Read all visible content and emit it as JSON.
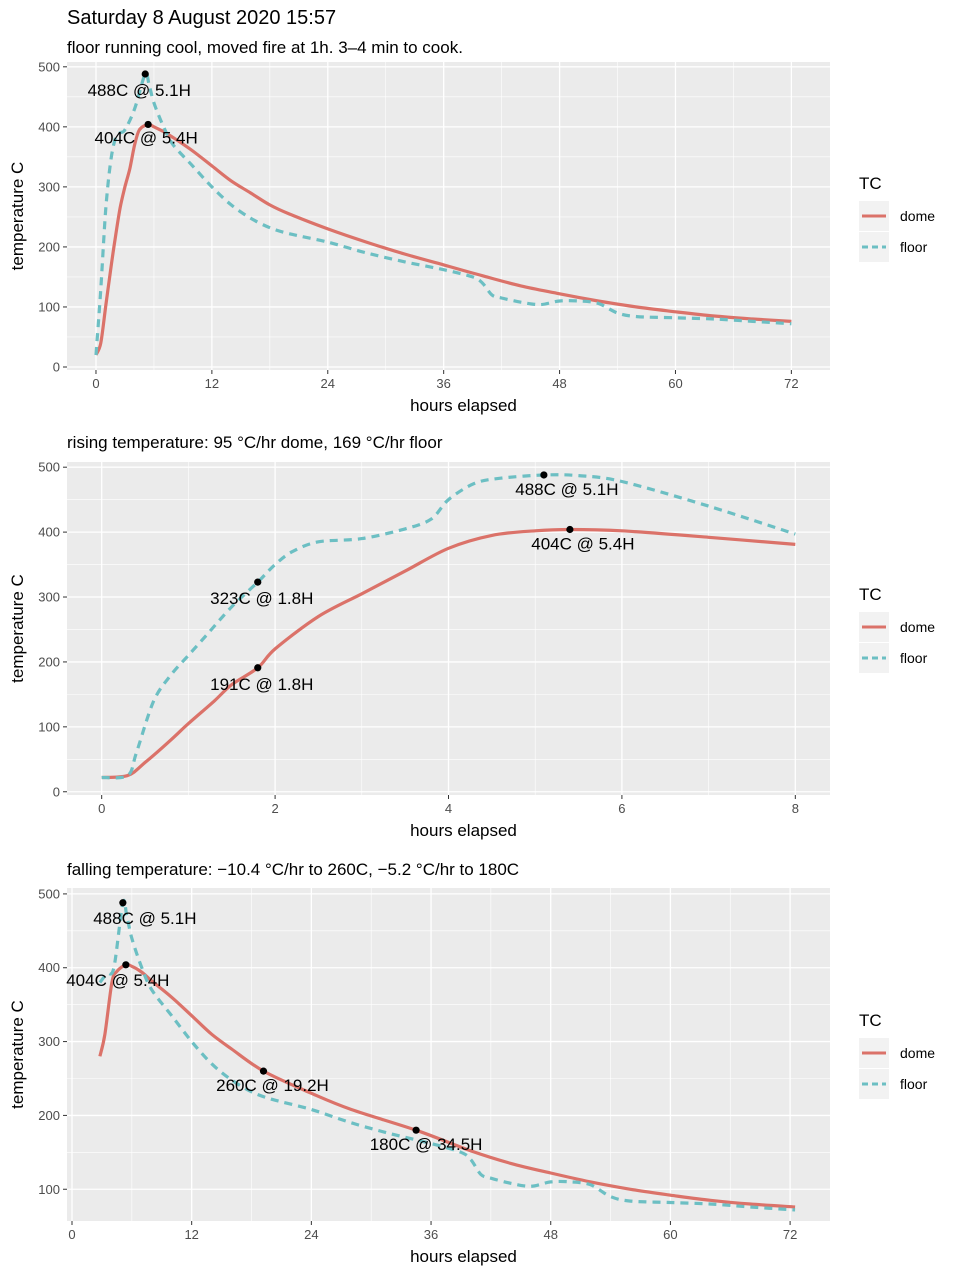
{
  "page_title": "Saturday 8 August 2020 15:57",
  "colors": {
    "dome": "#db7269",
    "floor": "#6cbfc3",
    "panel": "#ebebeb",
    "grid": "#ffffff"
  },
  "chart_data": [
    {
      "type": "line",
      "title": "floor running cool, moved fire at 1h. 3–4 min to cook.",
      "xlabel": "hours elapsed",
      "ylabel": "temperature C",
      "xlim": [
        -3,
        76
      ],
      "ylim": [
        -5,
        508
      ],
      "xticks": [
        0,
        12,
        24,
        36,
        48,
        60,
        72
      ],
      "yticks": [
        0,
        100,
        200,
        300,
        400,
        500
      ],
      "legend": {
        "title": "TC",
        "entries": [
          "dome",
          "floor"
        ],
        "position": "right"
      },
      "series": [
        {
          "name": "dome",
          "x": [
            0,
            0.5,
            1,
            1.5,
            2,
            2.5,
            3,
            3.5,
            4,
            4.5,
            5.4,
            6,
            7,
            8,
            10,
            12,
            14,
            16,
            18,
            20,
            24,
            28,
            32,
            36,
            40,
            44,
            48,
            52,
            56,
            60,
            64,
            68,
            72
          ],
          "y": [
            20,
            40,
            100,
            160,
            215,
            265,
            300,
            330,
            370,
            395,
            404,
            400,
            392,
            382,
            360,
            335,
            310,
            290,
            270,
            255,
            230,
            208,
            188,
            170,
            152,
            135,
            122,
            110,
            100,
            92,
            85,
            80,
            76
          ]
        },
        {
          "name": "floor",
          "x": [
            0,
            0.5,
            1,
            1.5,
            2,
            2.5,
            3,
            4,
            5.1,
            5.5,
            6,
            7,
            8,
            10,
            12,
            14,
            16,
            18,
            20,
            24,
            28,
            32,
            36,
            39,
            40,
            41,
            42,
            44,
            46,
            48,
            50,
            52,
            54,
            56,
            60,
            64,
            68,
            72
          ],
          "y": [
            20,
            130,
            260,
            340,
            380,
            390,
            395,
            430,
            488,
            470,
            440,
            400,
            370,
            335,
            300,
            270,
            248,
            232,
            222,
            208,
            190,
            175,
            162,
            150,
            140,
            120,
            115,
            108,
            104,
            110,
            110,
            106,
            90,
            84,
            82,
            80,
            76,
            72
          ]
        }
      ],
      "points": [
        {
          "x": 5.1,
          "y": 488,
          "label": "488C @ 5.1H"
        },
        {
          "x": 5.4,
          "y": 404,
          "label": "404C @ 5.4H"
        }
      ]
    },
    {
      "type": "line",
      "title": "rising temperature: 95 °C/hr dome, 169 °C/hr floor",
      "xlabel": "hours elapsed",
      "ylabel": "temperature C",
      "xlim": [
        -0.4,
        8.4
      ],
      "ylim": [
        -5,
        508
      ],
      "xticks": [
        0,
        2,
        4,
        6,
        8
      ],
      "yticks": [
        0,
        100,
        200,
        300,
        400,
        500
      ],
      "legend": {
        "title": "TC",
        "entries": [
          "dome",
          "floor"
        ],
        "position": "right"
      },
      "series": [
        {
          "name": "dome",
          "x": [
            0,
            0.3,
            0.5,
            0.8,
            1.0,
            1.3,
            1.5,
            1.8,
            2.0,
            2.5,
            3.0,
            3.5,
            4.0,
            4.5,
            5.0,
            5.4,
            6.0,
            7.0,
            8.0
          ],
          "y": [
            22,
            25,
            45,
            80,
            105,
            140,
            165,
            191,
            220,
            270,
            305,
            340,
            375,
            395,
            402,
            404,
            402,
            392,
            381
          ]
        },
        {
          "name": "floor",
          "x": [
            0,
            0.3,
            0.4,
            0.6,
            0.8,
            1.0,
            1.2,
            1.5,
            1.8,
            2.0,
            2.2,
            2.5,
            3.0,
            3.5,
            3.8,
            4.0,
            4.3,
            4.6,
            5.1,
            5.5,
            6.0,
            7.0,
            8.0
          ],
          "y": [
            22,
            25,
            60,
            140,
            180,
            210,
            240,
            285,
            323,
            350,
            370,
            385,
            390,
            405,
            420,
            450,
            475,
            483,
            488,
            487,
            478,
            440,
            397
          ]
        }
      ],
      "points": [
        {
          "x": 5.1,
          "y": 488,
          "label": "488C @ 5.1H"
        },
        {
          "x": 5.4,
          "y": 404,
          "label": "404C @ 5.4H"
        },
        {
          "x": 1.8,
          "y": 323,
          "label": "323C @ 1.8H"
        },
        {
          "x": 1.8,
          "y": 191,
          "label": "191C @ 1.8H"
        }
      ]
    },
    {
      "type": "line",
      "title": "falling temperature: −10.4 °C/hr to 260C, −5.2 °C/hr to 180C",
      "xlabel": "hours elapsed",
      "ylabel": "temperature C",
      "xlim": [
        -0.5,
        76
      ],
      "ylim": [
        57,
        508
      ],
      "xticks": [
        0,
        12,
        24,
        36,
        48,
        60,
        72
      ],
      "yticks": [
        100,
        200,
        300,
        400,
        500
      ],
      "legend": {
        "title": "TC",
        "entries": [
          "dome",
          "floor"
        ],
        "position": "right"
      },
      "series": [
        {
          "name": "dome",
          "x": [
            2.8,
            3.3,
            4,
            4.5,
            5.4,
            6,
            7,
            8,
            10,
            12,
            14,
            16,
            19.2,
            24,
            28,
            34.5,
            40,
            44,
            48,
            52,
            56,
            60,
            64,
            68,
            72.5
          ],
          "y": [
            280,
            310,
            380,
            395,
            404,
            402,
            394,
            382,
            360,
            335,
            310,
            290,
            260,
            230,
            208,
            180,
            152,
            135,
            122,
            110,
            100,
            92,
            85,
            80,
            76
          ]
        },
        {
          "name": "floor",
          "x": [
            2.8,
            3.5,
            4.2,
            5.1,
            5.5,
            6,
            7,
            8,
            10,
            12,
            14,
            16,
            18,
            20,
            24,
            28,
            32,
            36,
            39,
            40,
            41,
            42,
            44,
            46,
            48,
            50,
            52,
            54,
            56,
            60,
            64,
            68,
            72.5
          ],
          "y": [
            380,
            392,
            400,
            488,
            470,
            440,
            400,
            370,
            335,
            300,
            270,
            248,
            232,
            222,
            208,
            190,
            175,
            162,
            150,
            140,
            120,
            115,
            108,
            104,
            110,
            110,
            106,
            90,
            84,
            82,
            80,
            76,
            72
          ]
        }
      ],
      "points": [
        {
          "x": 5.1,
          "y": 488,
          "label": "488C @ 5.1H"
        },
        {
          "x": 5.4,
          "y": 404,
          "label": "404C @ 5.4H"
        },
        {
          "x": 19.2,
          "y": 260,
          "label": "260C @ 19.2H"
        },
        {
          "x": 34.5,
          "y": 180,
          "label": "180C @ 34.5H"
        }
      ]
    }
  ]
}
